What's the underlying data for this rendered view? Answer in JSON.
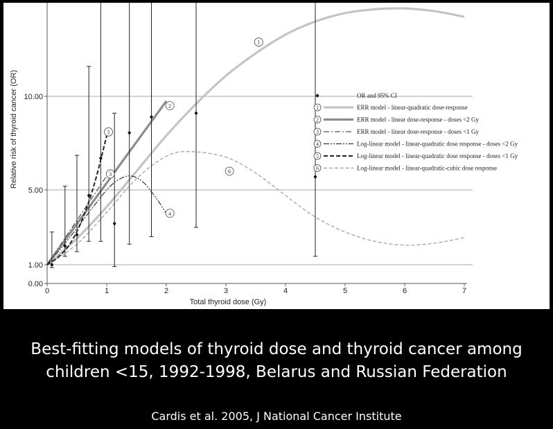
{
  "chart_data": {
    "type": "line",
    "xlabel": "Total thyroid dose (Gy)",
    "ylabel": "Relative risk of thyroid cancer (OR)",
    "xlim": [
      0,
      7
    ],
    "ylim": [
      0,
      15
    ],
    "x_ticks": [
      "0",
      "1",
      "2",
      "3",
      "4",
      "5",
      "6",
      "7"
    ],
    "y_ticks": [
      {
        "value": 0,
        "label": "0.00"
      },
      {
        "value": 1,
        "label": "1.00"
      },
      {
        "value": 5,
        "label": "5.00"
      },
      {
        "value": 10,
        "label": "10.00"
      }
    ],
    "gridlines_y": [
      1,
      5,
      10
    ],
    "points": [
      {
        "x": 0.08,
        "y": 1.0,
        "lo": 0.85,
        "hi": 2.75
      },
      {
        "x": 0.3,
        "y": 2.0,
        "lo": 1.45,
        "hi": 5.2
      },
      {
        "x": 0.5,
        "y": 2.6,
        "lo": 1.7,
        "hi": 6.85
      },
      {
        "x": 0.7,
        "y": 4.7,
        "lo": 2.25,
        "hi": 11.6
      },
      {
        "x": 0.9,
        "y": 6.7,
        "lo": 2.25,
        "hi": 15.0
      },
      {
        "x": 1.13,
        "y": 3.2,
        "lo": 0.9,
        "hi": 9.1
      },
      {
        "x": 1.38,
        "y": 8.05,
        "lo": 2.1,
        "hi": 15.0
      },
      {
        "x": 1.75,
        "y": 8.9,
        "lo": 2.5,
        "hi": 15.0
      },
      {
        "x": 2.5,
        "y": 9.1,
        "lo": 3.0,
        "hi": 15.0
      },
      {
        "x": 4.5,
        "y": 5.7,
        "lo": 1.45,
        "hi": 15.0
      }
    ],
    "series": [
      {
        "id": "1",
        "name": "ERR model - linear-quadratic dose-response",
        "style": "thick-light",
        "x": [
          0,
          0.5,
          1,
          1.5,
          2,
          2.5,
          3,
          3.5,
          4,
          4.5,
          5,
          5.5,
          6,
          6.5,
          7
        ],
        "y": [
          1.0,
          2.4,
          4.1,
          6.0,
          7.9,
          9.6,
          11.1,
          12.3,
          13.3,
          14.0,
          14.45,
          14.65,
          14.7,
          14.55,
          14.25
        ]
      },
      {
        "id": "2",
        "name": "ERR model - linear dose-response - doses <2 Gy",
        "style": "thick-dark",
        "x": [
          0,
          2
        ],
        "y": [
          1.0,
          9.75
        ]
      },
      {
        "id": "3",
        "name": "ERR model - linear dose-response - doses <1 Gy",
        "style": "dash-dot",
        "x": [
          0,
          1
        ],
        "y": [
          1.0,
          5.75
        ]
      },
      {
        "id": "4",
        "name": "Log-linear model - linear-quadratic dose response - doses <2 Gy",
        "style": "dash-dot-dot",
        "x": [
          0,
          0.25,
          0.5,
          0.75,
          1.0,
          1.2,
          1.4,
          1.6,
          1.8,
          2.0
        ],
        "y": [
          1.0,
          1.95,
          2.95,
          4.0,
          5.0,
          5.55,
          5.75,
          5.45,
          4.7,
          3.75
        ]
      },
      {
        "id": "5",
        "name": "Log-linear model - linear-quadratic dose response - doses <1 Gy",
        "style": "dashed-dark",
        "x": [
          0,
          0.2,
          0.4,
          0.6,
          0.8,
          1.0
        ],
        "y": [
          1.0,
          1.45,
          2.2,
          3.5,
          5.4,
          7.9
        ]
      },
      {
        "id": "6",
        "name": "Log-linear model - linear-quadratic-cubic dose response",
        "style": "dashed-light",
        "x": [
          0,
          0.5,
          1,
          1.5,
          2,
          2.4,
          3,
          3.5,
          4,
          4.5,
          5,
          5.5,
          6,
          6.5,
          7
        ],
        "y": [
          1.0,
          2.1,
          3.8,
          5.6,
          6.8,
          7.05,
          6.75,
          5.9,
          4.7,
          3.55,
          2.75,
          2.25,
          2.05,
          2.15,
          2.45
        ]
      }
    ],
    "series_labels": [
      {
        "id": "1",
        "x": 3.55,
        "y": 12.9
      },
      {
        "id": "2",
        "x": 2.06,
        "y": 9.5
      },
      {
        "id": "3",
        "x": 1.06,
        "y": 5.85
      },
      {
        "id": "4",
        "x": 2.06,
        "y": 3.75
      },
      {
        "id": "5",
        "x": 1.03,
        "y": 8.1
      },
      {
        "id": "6",
        "x": 3.06,
        "y": 6.0
      }
    ],
    "legend": {
      "placement": "right",
      "marker_label": "OR and 95% CI"
    }
  },
  "caption": {
    "title_line1": "Best-fitting models of thyroid dose and thyroid cancer among",
    "title_line2": "children <15, 1992-1998, Belarus and Russian Federation",
    "source": "Cardis et al. 2005, J National Cancer Institute"
  }
}
